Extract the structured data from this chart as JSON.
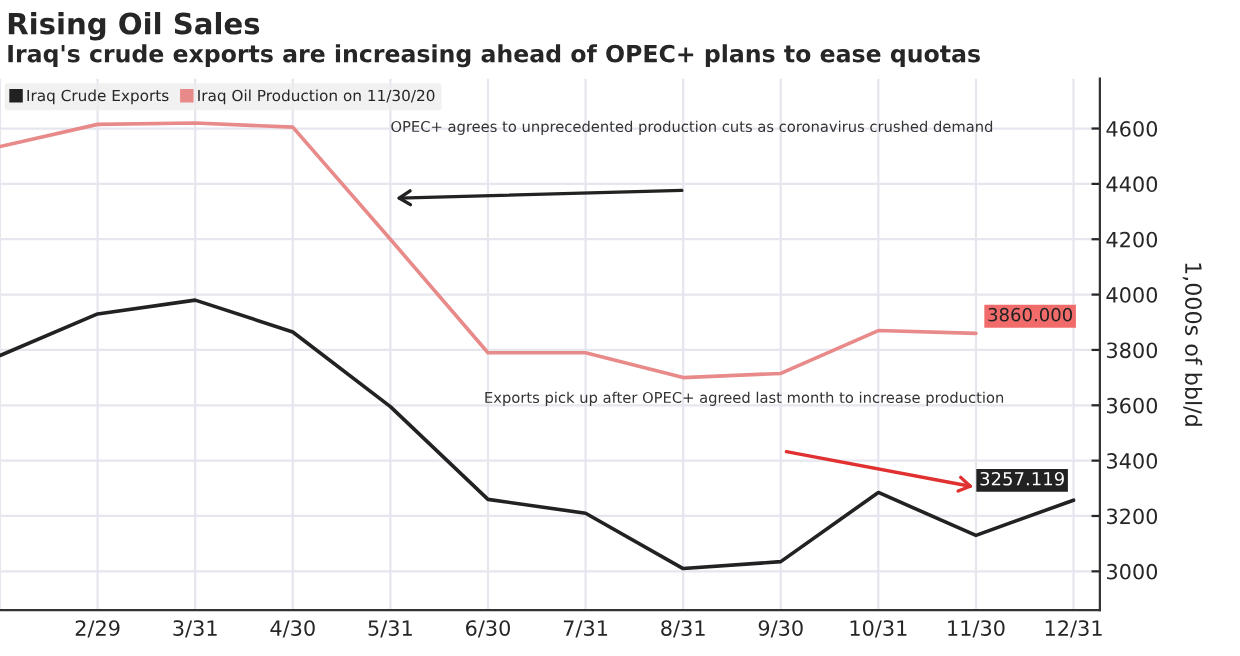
{
  "chart_data": {
    "type": "line",
    "title": "Rising Oil Sales",
    "subtitle": "Iraq's crude exports are increasing ahead of OPEC+ plans to ease quotas",
    "ylabel": "1,000s of bbl/d",
    "categories": [
      null,
      "2/29",
      "3/31",
      "4/30",
      "5/31",
      "6/30",
      "7/31",
      "8/31",
      "9/30",
      "10/31",
      "11/30",
      "12/31"
    ],
    "series": [
      {
        "name": "Iraq Crude Exports",
        "color": "#222222",
        "values": [
          3780,
          3930,
          3980,
          3865,
          3595,
          3260,
          3210,
          3010,
          3035,
          3285,
          3130,
          3257.119
        ],
        "value_labels": [
          null,
          null,
          null,
          null,
          null,
          null,
          null,
          null,
          null,
          null,
          null,
          "3257.119"
        ]
      },
      {
        "name": "Iraq Oil Production on 11/30/20",
        "color": "#e88a8a",
        "values": [
          4535,
          4615,
          4620,
          4605,
          4200,
          3790,
          3790,
          3700,
          3715,
          3870,
          3860,
          null
        ],
        "value_labels": [
          null,
          null,
          null,
          null,
          null,
          null,
          null,
          null,
          null,
          null,
          "3860.000",
          null
        ]
      }
    ],
    "ylim": [
      2860,
      4780
    ],
    "yticks": [
      3000,
      3200,
      3400,
      3600,
      3800,
      4000,
      4200,
      4400,
      4600
    ],
    "grid": true,
    "legend": "top left",
    "annotations": [
      "OPEC+ agrees to unprecedented production cuts as coronavirus crushed demand",
      "Exports pick up after OPEC+ agreed last month to increase production"
    ]
  }
}
